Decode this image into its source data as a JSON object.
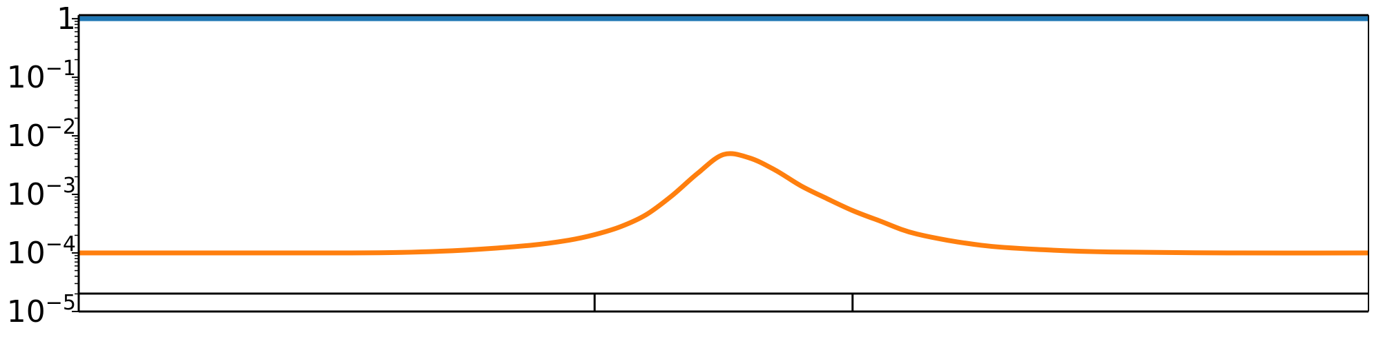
{
  "chart_data": {
    "type": "line",
    "title": "",
    "xlabel": "",
    "ylabel": "",
    "yscale": "log",
    "ylim": [
      1e-05,
      1.15
    ],
    "xlim": [
      0,
      1
    ],
    "grid": false,
    "legend": "none",
    "y_ticks": [
      {
        "value": 1,
        "base": "1",
        "exp": ""
      },
      {
        "value": 0.1,
        "base": "10",
        "exp": "−1"
      },
      {
        "value": 0.01,
        "base": "10",
        "exp": "−2"
      },
      {
        "value": 0.001,
        "base": "10",
        "exp": "−3"
      },
      {
        "value": 0.0001,
        "base": "10",
        "exp": "−4"
      },
      {
        "value": 1e-05,
        "base": "10",
        "exp": "−5"
      }
    ],
    "series": [
      {
        "color": "#1f77b4",
        "x": [
          0,
          0.25,
          0.5,
          0.75,
          1
        ],
        "y": [
          1.0,
          1.0,
          1.0,
          1.0,
          1.0
        ]
      },
      {
        "color": "#ff7f0e",
        "x": [
          0,
          0.1,
          0.2,
          0.25,
          0.3,
          0.35,
          0.38,
          0.4,
          0.42,
          0.44,
          0.46,
          0.48,
          0.5,
          0.52,
          0.54,
          0.56,
          0.58,
          0.6,
          0.62,
          0.65,
          0.7,
          0.75,
          0.8,
          0.9,
          1
        ],
        "y": [
          0.0001,
          0.0001,
          0.0001,
          0.000102,
          0.000112,
          0.000135,
          0.000165,
          0.000205,
          0.00028,
          0.00045,
          0.00095,
          0.0023,
          0.0048,
          0.0042,
          0.0026,
          0.0014,
          0.00085,
          0.00053,
          0.00036,
          0.00021,
          0.000135,
          0.000113,
          0.000104,
          0.0001,
          0.0001
        ]
      }
    ],
    "bottom_band": {
      "color": "#000000",
      "dividers_x": [
        0.4,
        0.6
      ]
    }
  }
}
